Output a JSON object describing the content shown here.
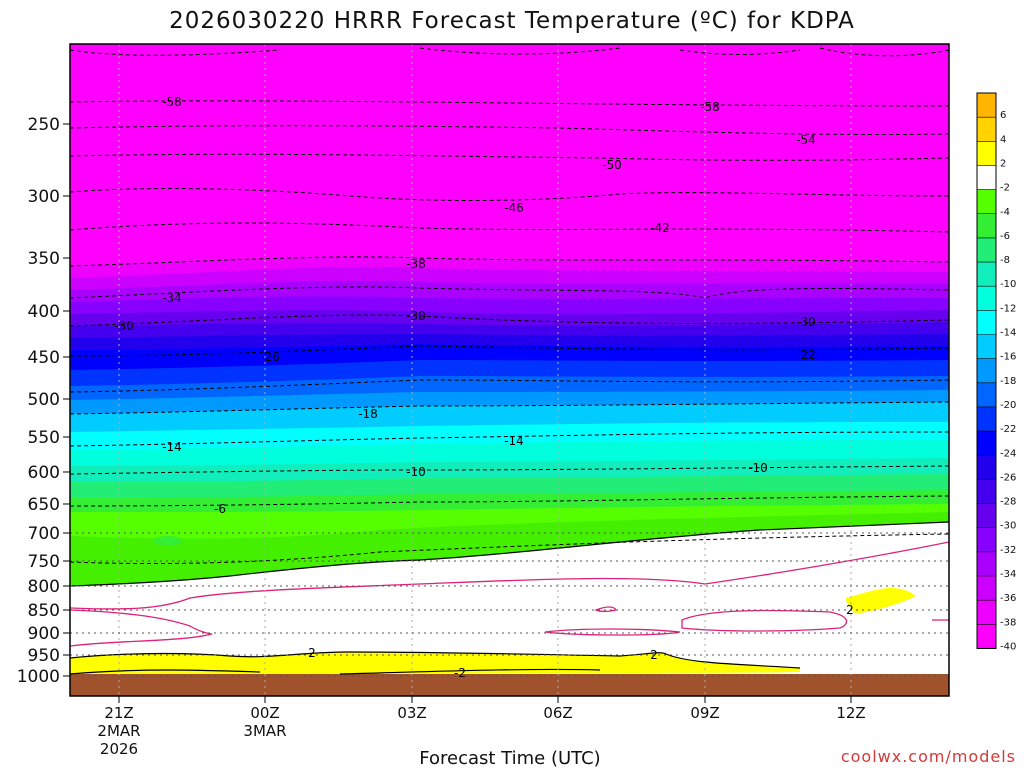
{
  "title": "2026030220 HRRR Forecast Temperature (ºC) for KDPA",
  "xlabel": "Forecast Time (UTC)",
  "credit": "coolwx.com/models",
  "chart_data": {
    "type": "heatmap",
    "title": "2026030220 HRRR Forecast Temperature (ºC) for KDPA",
    "xlabel": "Forecast Time (UTC)",
    "ylabel": "",
    "x_ticks": [
      {
        "lines": [
          "21Z",
          "2MAR",
          "2026"
        ]
      },
      {
        "lines": [
          "00Z",
          "3MAR"
        ]
      },
      {
        "lines": [
          "03Z"
        ]
      },
      {
        "lines": [
          "06Z"
        ]
      },
      {
        "lines": [
          "09Z"
        ]
      },
      {
        "lines": [
          "12Z"
        ]
      }
    ],
    "y_ticks": [
      "250",
      "300",
      "350",
      "400",
      "450",
      "500",
      "550",
      "600",
      "650",
      "700",
      "750",
      "800",
      "850",
      "900",
      "950",
      "1000"
    ],
    "y_scale": "log-pressure (inverted)",
    "colorbar": {
      "labels": [
        "6",
        "4",
        "2",
        "-2",
        "-4",
        "-6",
        "-8",
        "-10",
        "-12",
        "-14",
        "-16",
        "-18",
        "-20",
        "-22",
        "-24",
        "-26",
        "-28",
        "-30",
        "-32",
        "-34",
        "-36",
        "-38",
        "-40"
      ],
      "colors": [
        "#ffb400",
        "#ffd200",
        "#ffff00",
        "#ffffff",
        "#55ff00",
        "#33ee33",
        "#22ee77",
        "#11eebb",
        "#00ffdd",
        "#00ffff",
        "#00ccff",
        "#0099ff",
        "#0066ff",
        "#0033ff",
        "#0000ff",
        "#2200ee",
        "#4400ee",
        "#6600ee",
        "#8800ff",
        "#aa00ff",
        "#cc00ff",
        "#ee00ff",
        "#ff00ff"
      ]
    },
    "contour_labels": [
      "-58",
      "-58",
      "-54",
      "-50",
      "-46",
      "-42",
      "-38",
      "-34",
      "-30",
      "-30",
      "-30",
      "-26",
      "-22",
      "-18",
      "-14",
      "-14",
      "-10",
      "-10",
      "-6",
      "2",
      "2",
      "-2",
      "2"
    ],
    "grid": true
  }
}
